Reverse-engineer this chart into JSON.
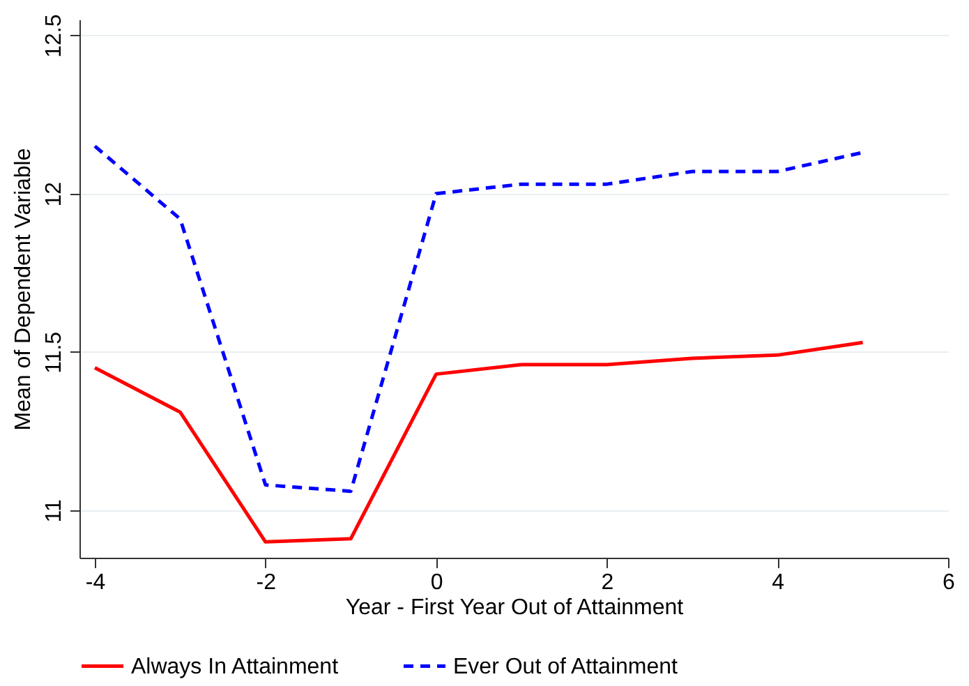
{
  "chart_data": {
    "type": "line",
    "xlabel": "Year - First Year Out of Attainment",
    "ylabel": "Mean of Dependent Variable",
    "x": [
      -4,
      -3,
      -2,
      -1,
      0,
      1,
      2,
      3,
      4,
      5
    ],
    "series": [
      {
        "name": "Always In Attainment",
        "color": "#ff0000",
        "line_style": "solid",
        "values": [
          11.45,
          11.31,
          10.9,
          10.91,
          11.43,
          11.46,
          11.46,
          11.48,
          11.49,
          11.53
        ]
      },
      {
        "name": "Ever Out of Attainment",
        "color": "#0000ff",
        "line_style": "dashed",
        "values": [
          12.15,
          11.92,
          11.08,
          11.06,
          12.0,
          12.03,
          12.03,
          12.07,
          12.07,
          12.13
        ]
      }
    ],
    "xlim": [
      -4.18,
      6
    ],
    "xticks": [
      -4,
      -2,
      0,
      2,
      4,
      6
    ],
    "ylim": [
      10.85,
      12.55
    ],
    "yticks": [
      11,
      11.5,
      12,
      12.5
    ],
    "grid": "y",
    "legend": "bottom",
    "marker": "none"
  }
}
